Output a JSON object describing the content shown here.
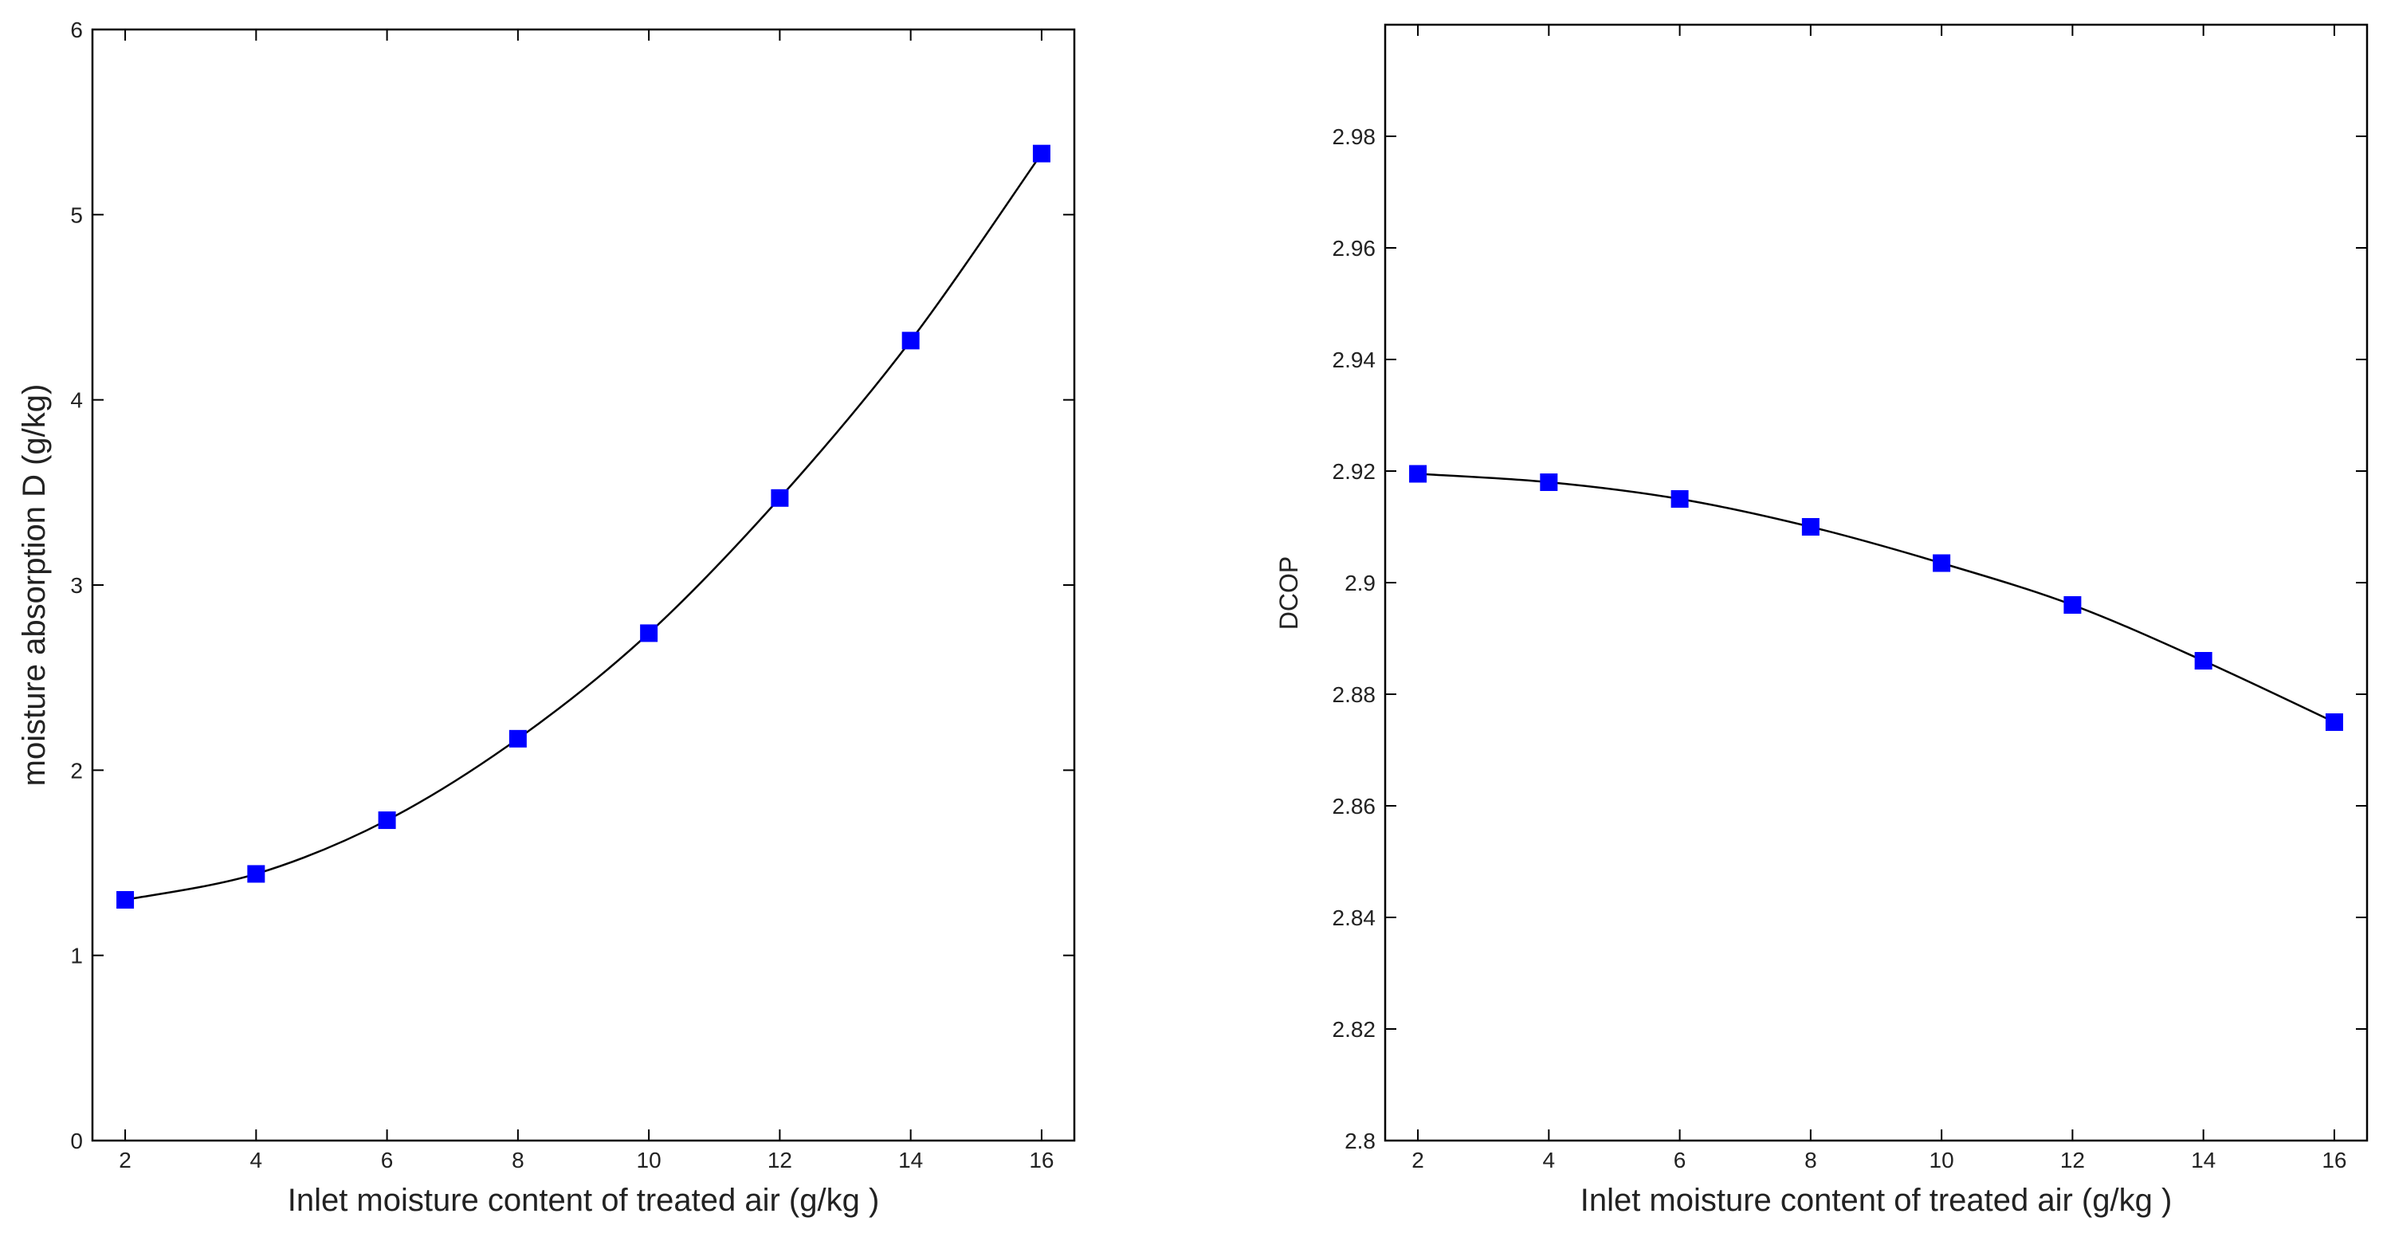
{
  "colors": {
    "marker": "#0000ff",
    "line": "#000000",
    "frame": "#000000",
    "background": "#ffffff"
  },
  "chart_data": [
    {
      "type": "line",
      "title": "",
      "xlabel": "Inlet moisture content of treated air (g/kg )",
      "ylabel": "moisture absorption D (g/kg)",
      "xlim": [
        1.5,
        16.5
      ],
      "ylim": [
        0,
        6
      ],
      "xticks": [
        2,
        4,
        6,
        8,
        10,
        12,
        14,
        16
      ],
      "xtick_labels": [
        "2",
        "4",
        "6",
        "8",
        "10",
        "12",
        "14",
        "16"
      ],
      "yticks": [
        0,
        1,
        2,
        3,
        4,
        5,
        6
      ],
      "ytick_labels": [
        "0",
        "1",
        "2",
        "3",
        "4",
        "5",
        "6"
      ],
      "grid": false,
      "marker": "square",
      "series": [
        {
          "name": "moisture absorption D",
          "x": [
            2,
            4,
            6,
            8,
            10,
            12,
            14,
            16
          ],
          "values": [
            1.3,
            1.44,
            1.73,
            2.17,
            2.74,
            3.47,
            4.32,
            5.33
          ]
        }
      ]
    },
    {
      "type": "line",
      "title": "",
      "xlabel": "Inlet moisture content of treated air (g/kg )",
      "ylabel": "DCOP",
      "xlim": [
        1.5,
        16.5
      ],
      "ylim": [
        2.8,
        3.0
      ],
      "xticks": [
        2,
        4,
        6,
        8,
        10,
        12,
        14,
        16
      ],
      "xtick_labels": [
        "2",
        "4",
        "6",
        "8",
        "10",
        "12",
        "14",
        "16"
      ],
      "yticks": [
        2.8,
        2.82,
        2.84,
        2.86,
        2.88,
        2.9,
        2.92,
        2.94,
        2.96,
        2.98
      ],
      "ytick_labels": [
        "2.8",
        "2.82",
        "2.84",
        "2.86",
        "2.88",
        "2.9",
        "2.92",
        "2.94",
        "2.96",
        "2.98"
      ],
      "grid": false,
      "marker": "square",
      "series": [
        {
          "name": "DCOP",
          "x": [
            2,
            4,
            6,
            8,
            10,
            12,
            14,
            16
          ],
          "values": [
            2.9195,
            2.918,
            2.915,
            2.91,
            2.9035,
            2.896,
            2.886,
            2.875
          ]
        }
      ]
    }
  ]
}
